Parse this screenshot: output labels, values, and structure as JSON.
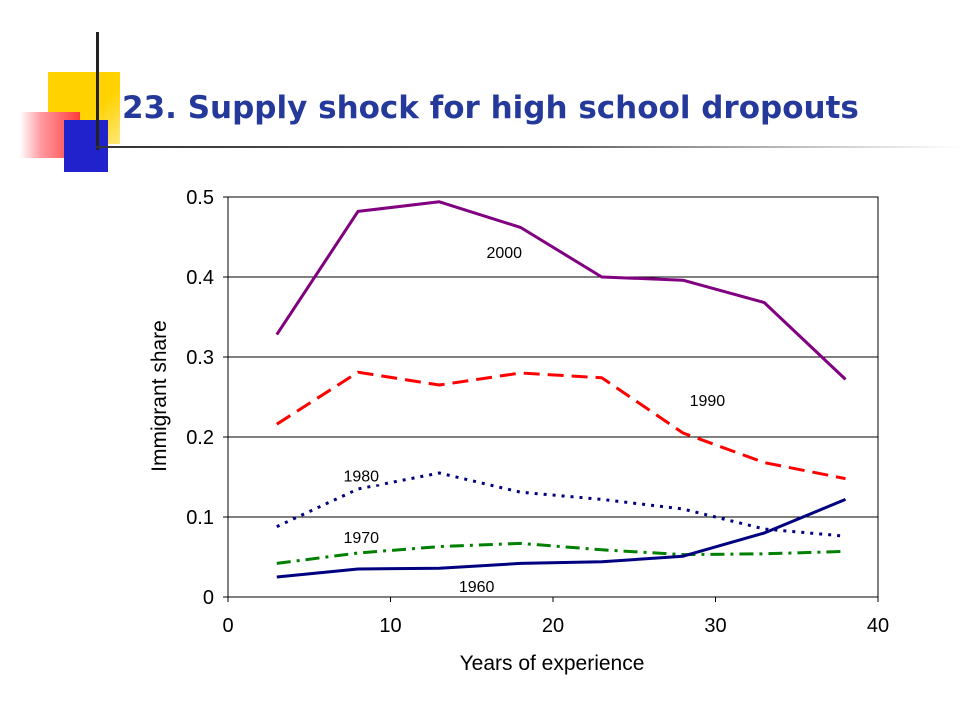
{
  "slide": {
    "title": "23. Supply shock for high school dropouts"
  },
  "chart_data": {
    "type": "line",
    "title": "",
    "xlabel": "Years of experience",
    "ylabel": "Immigrant share",
    "xlim": [
      0,
      40
    ],
    "ylim": [
      0,
      0.5
    ],
    "x_ticks": [
      0,
      10,
      20,
      30,
      40
    ],
    "y_ticks": [
      0,
      0.1,
      0.2,
      0.3,
      0.4,
      0.5
    ],
    "y_tick_labels": [
      "0",
      "0.1",
      "0.2",
      "0.3",
      "0.4",
      "0.5"
    ],
    "grid": "horizontal",
    "x": [
      3,
      8,
      13,
      18,
      23,
      28,
      33,
      38
    ],
    "series": [
      {
        "name": "2000",
        "color": "#800080",
        "dash": "solid",
        "values": [
          0.328,
          0.482,
          0.494,
          0.462,
          0.4,
          0.396,
          0.368,
          0.272
        ]
      },
      {
        "name": "1990",
        "color": "#ff0000",
        "dash": "dashed",
        "values": [
          0.216,
          0.281,
          0.265,
          0.28,
          0.274,
          0.205,
          0.168,
          0.148
        ]
      },
      {
        "name": "1980",
        "color": "#000080",
        "dash": "dotted",
        "values": [
          0.088,
          0.135,
          0.155,
          0.131,
          0.122,
          0.11,
          0.085,
          0.076
        ]
      },
      {
        "name": "1970",
        "color": "#008000",
        "dash": "dashdot",
        "values": [
          0.042,
          0.055,
          0.063,
          0.067,
          0.059,
          0.053,
          0.054,
          0.057
        ]
      },
      {
        "name": "1960",
        "color": "#000080",
        "dash": "solid",
        "values": [
          0.025,
          0.035,
          0.036,
          0.042,
          0.044,
          0.051,
          0.08,
          0.122
        ]
      }
    ],
    "annotations": [
      {
        "text": "2000",
        "x": 17.0,
        "y": 0.431
      },
      {
        "text": "1990",
        "x": 29.5,
        "y": 0.246
      },
      {
        "text": "1980",
        "x": 8.2,
        "y": 0.152
      },
      {
        "text": "1970",
        "x": 8.2,
        "y": 0.075
      },
      {
        "text": "1960",
        "x": 15.3,
        "y": 0.014
      }
    ]
  }
}
